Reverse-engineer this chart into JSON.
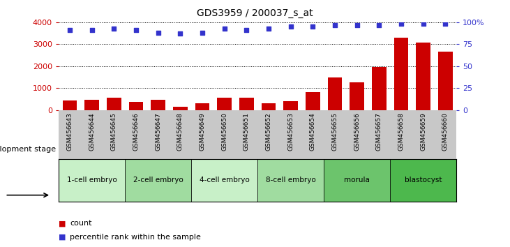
{
  "title": "GDS3959 / 200037_s_at",
  "samples": [
    "GSM456643",
    "GSM456644",
    "GSM456645",
    "GSM456646",
    "GSM456647",
    "GSM456648",
    "GSM456649",
    "GSM456650",
    "GSM456651",
    "GSM456652",
    "GSM456653",
    "GSM456654",
    "GSM456655",
    "GSM456656",
    "GSM456657",
    "GSM456658",
    "GSM456659",
    "GSM456660"
  ],
  "counts": [
    420,
    460,
    570,
    360,
    460,
    150,
    310,
    560,
    570,
    290,
    400,
    820,
    1480,
    1250,
    1950,
    3300,
    3080,
    2650
  ],
  "percentile_ranks": [
    91,
    91,
    93,
    91,
    88,
    87,
    88,
    93,
    91,
    93,
    95,
    95,
    97,
    97,
    97,
    98,
    98,
    98
  ],
  "bar_color": "#cc0000",
  "dot_color": "#3333cc",
  "left_yaxis_color": "#cc0000",
  "right_yaxis_color": "#3333cc",
  "ylim_left": [
    0,
    4000
  ],
  "ylim_right": [
    0,
    100
  ],
  "left_yticks": [
    0,
    1000,
    2000,
    3000,
    4000
  ],
  "right_yticks": [
    0,
    25,
    50,
    75,
    100
  ],
  "right_yticklabels": [
    "0",
    "25",
    "50",
    "75",
    "100%"
  ],
  "stages": [
    {
      "label": "1-cell embryo",
      "start": 0,
      "end": 3,
      "color": "#c8f0c8"
    },
    {
      "label": "2-cell embryo",
      "start": 3,
      "end": 6,
      "color": "#a0dca0"
    },
    {
      "label": "4-cell embryo",
      "start": 6,
      "end": 9,
      "color": "#c8f0c8"
    },
    {
      "label": "8-cell embryo",
      "start": 9,
      "end": 12,
      "color": "#a0dca0"
    },
    {
      "label": "morula",
      "start": 12,
      "end": 15,
      "color": "#6cc46c"
    },
    {
      "label": "blastocyst",
      "start": 15,
      "end": 18,
      "color": "#4db84d"
    }
  ],
  "tick_area_color": "#c8c8c8",
  "xlabel_stage": "development stage",
  "legend_count_color": "#cc0000",
  "legend_dot_color": "#3333cc",
  "grid_color": "#000000"
}
